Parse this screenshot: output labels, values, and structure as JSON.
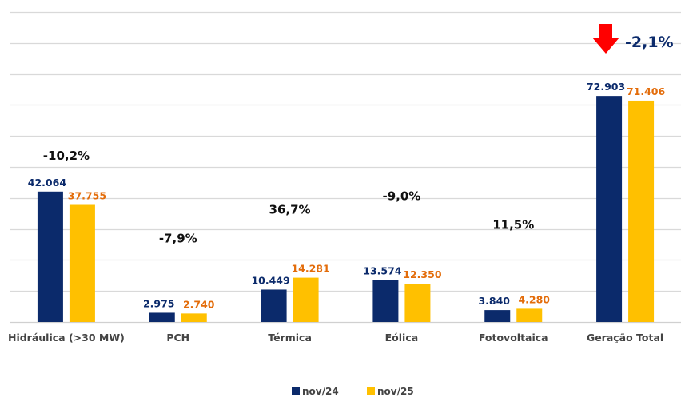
{
  "chart_data": {
    "type": "bar",
    "title": "",
    "xlabel": "",
    "ylabel": "",
    "ylim": [
      0,
      100000
    ],
    "grid": true,
    "legend_position": "bottom",
    "categories": [
      "Hidráulica (>30 MW)",
      "PCH",
      "Térmica",
      "Eólica",
      "Fotovoltaica",
      "Geração Total"
    ],
    "series": [
      {
        "name": "nov/24",
        "color": "#0B2A6B",
        "values": [
          42064,
          2975,
          10449,
          13574,
          3840,
          72903
        ],
        "labels": [
          "42.064",
          "2.975",
          "10.449",
          "13.574",
          "3.840",
          "72.903"
        ],
        "label_color": "#0B2A6B"
      },
      {
        "name": "nov/25",
        "color": "#FFC000",
        "values": [
          37755,
          2740,
          14281,
          12350,
          4280,
          71406
        ],
        "labels": [
          "37.755",
          "2.740",
          "14.281",
          "12.350",
          "4.280",
          "71.406"
        ],
        "label_color": "#E36C0A"
      }
    ],
    "variations": [
      "-10,2%",
      "-7,9%",
      "36,7%",
      "-9,0%",
      "11,5%",
      "-2,1%"
    ],
    "variation_values": [
      -10.2,
      -7.9,
      36.7,
      -9.0,
      11.5,
      -2.1
    ],
    "annotation": {
      "icon": "arrow-down-icon",
      "arrow_color": "#FF0000",
      "text": "-2,1%",
      "text_color": "#0B2A6B"
    },
    "grid_color": "#D9D9D9"
  }
}
